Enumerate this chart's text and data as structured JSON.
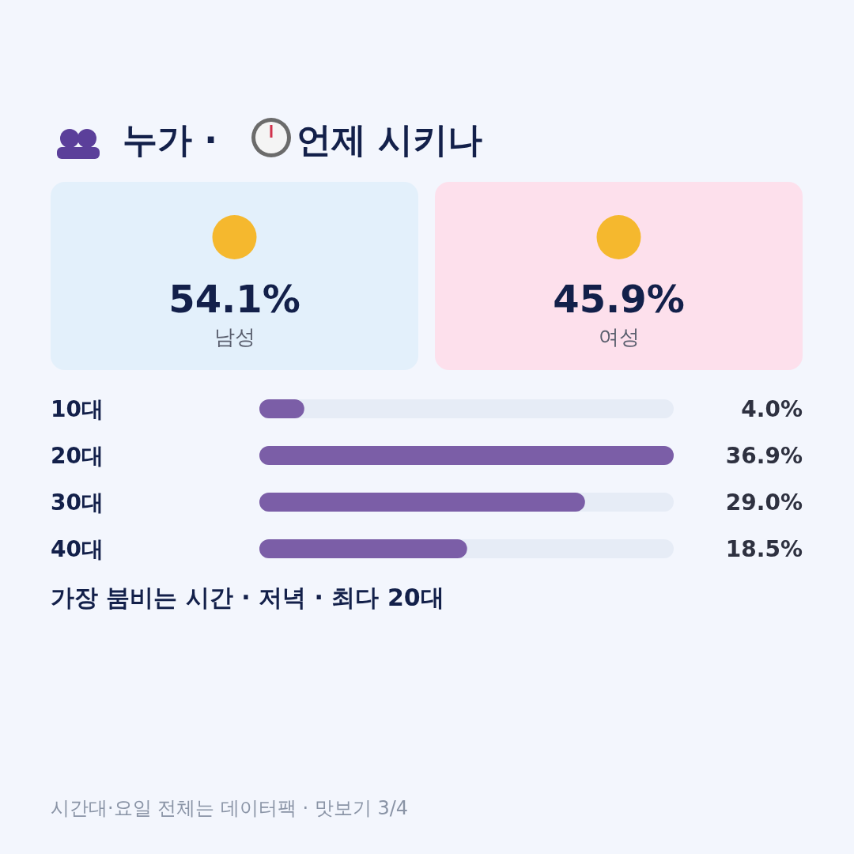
{
  "chart_data": [
    {
      "type": "other",
      "title": "누가 · 언제 시키나",
      "categories": [
        "남성",
        "여성"
      ],
      "values": [
        54.1,
        45.9
      ],
      "value_labels": [
        "54.1%",
        "45.9%"
      ],
      "colors": [
        "#e3f0fb",
        "#fde0ec"
      ]
    },
    {
      "type": "bar",
      "orientation": "horizontal",
      "categories": [
        "10대",
        "20대",
        "30대",
        "40대"
      ],
      "values": [
        4.0,
        36.9,
        29.0,
        18.5
      ],
      "value_labels": [
        "4.0%",
        "36.9%",
        "29.0%",
        "18.5%"
      ],
      "color": "#7b5ea7",
      "annotations": [
        "가장 붐비는 시간 · 저녁 · 최다 20대",
        "시간대·요일 전체는 데이터팩 · 맛보기 3/4"
      ]
    }
  ]
}
